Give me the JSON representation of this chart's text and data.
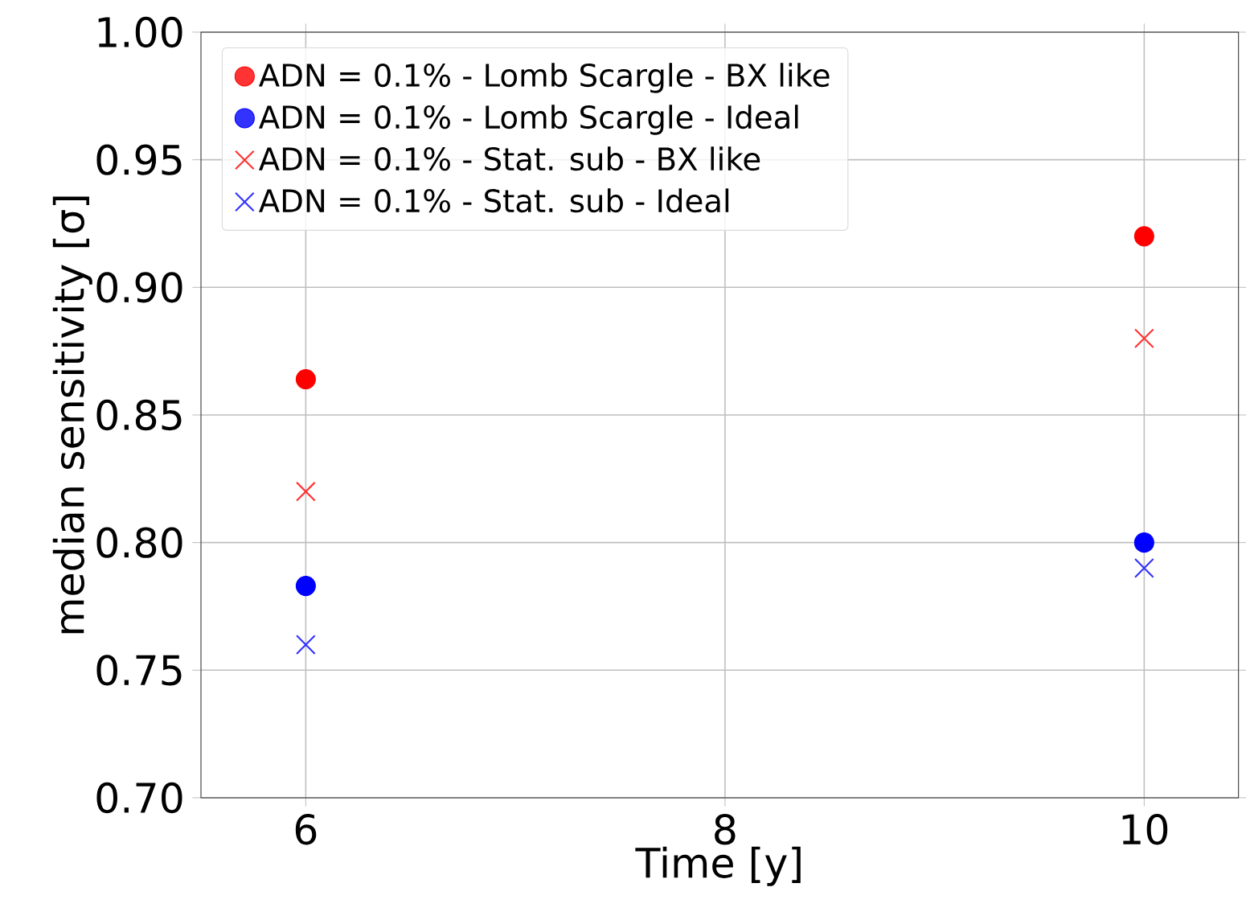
{
  "chart_data": {
    "type": "scatter",
    "xlabel": "Time [y]",
    "ylabel": "median sensitivity [σ]",
    "x": [
      6,
      10
    ],
    "series": [
      {
        "name": "ADN = 0.1% - Lomb Scargle - BX like",
        "color": "#ff0000",
        "marker": "circle",
        "values": [
          0.864,
          0.92
        ]
      },
      {
        "name": "ADN = 0.1% - Lomb Scargle - Ideal",
        "color": "#0000ff",
        "marker": "circle",
        "values": [
          0.783,
          0.8
        ]
      },
      {
        "name": "ADN = 0.1% - Stat. sub - BX like",
        "color": "#ff3333",
        "marker": "cross",
        "values": [
          0.82,
          0.88
        ]
      },
      {
        "name": "ADN = 0.1% - Stat. sub - Ideal",
        "color": "#3333ff",
        "marker": "cross",
        "values": [
          0.76,
          0.79
        ]
      }
    ],
    "xlim": [
      5.5,
      10.45
    ],
    "ylim": [
      0.7,
      1.0
    ],
    "xticks": [
      6,
      8,
      10
    ],
    "yticks": [
      {
        "value": 0.7,
        "label": "0.70"
      },
      {
        "value": 0.75,
        "label": "0.75"
      },
      {
        "value": 0.8,
        "label": "0.80"
      },
      {
        "value": 0.85,
        "label": "0.85"
      },
      {
        "value": 0.9,
        "label": "0.90"
      },
      {
        "value": 0.95,
        "label": "0.95"
      },
      {
        "value": 1.0,
        "label": "1.00"
      }
    ],
    "grid": true,
    "legend": "top left"
  }
}
